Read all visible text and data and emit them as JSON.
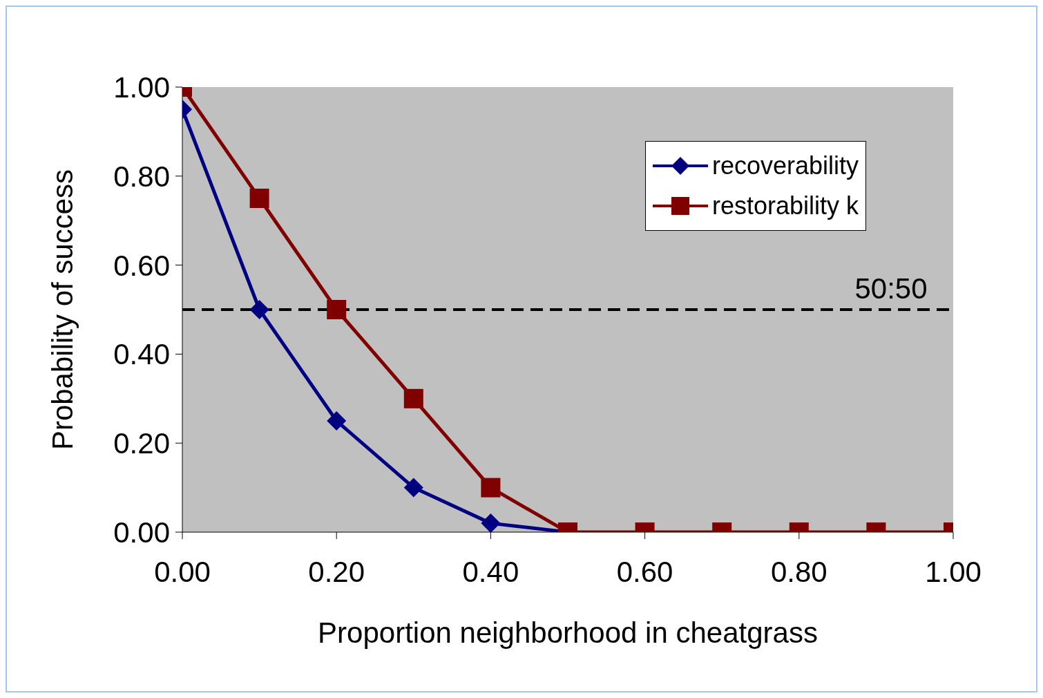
{
  "chart_data": {
    "type": "line",
    "xlabel": "Proportion neighborhood in cheatgrass",
    "ylabel": "Probability of success",
    "x": [
      0,
      0.1,
      0.2,
      0.3,
      0.4,
      0.5,
      0.6,
      0.7,
      0.8,
      0.9,
      1.0
    ],
    "series": [
      {
        "name": "recoverability",
        "color": "#000080",
        "marker": "diamond",
        "values": [
          0.95,
          0.5,
          0.25,
          0.1,
          0.02,
          0,
          null,
          null,
          null,
          null,
          null
        ]
      },
      {
        "name": "restorability k",
        "color": "#800000",
        "marker": "square",
        "values": [
          1.0,
          0.75,
          0.5,
          0.3,
          0.1,
          0,
          0,
          0,
          0,
          0,
          0
        ]
      }
    ],
    "xlim": [
      0,
      1
    ],
    "ylim": [
      0,
      1
    ],
    "xticks": [
      {
        "value": 0,
        "label": "0.00"
      },
      {
        "value": 0.2,
        "label": "0.20"
      },
      {
        "value": 0.4,
        "label": "0.40"
      },
      {
        "value": 0.6,
        "label": "0.60"
      },
      {
        "value": 0.8,
        "label": "0.80"
      },
      {
        "value": 1,
        "label": "1.00"
      }
    ],
    "yticks": [
      {
        "value": 0,
        "label": "0.00"
      },
      {
        "value": 0.2,
        "label": "0.20"
      },
      {
        "value": 0.4,
        "label": "0.40"
      },
      {
        "value": 0.6,
        "label": "0.60"
      },
      {
        "value": 0.8,
        "label": "0.80"
      },
      {
        "value": 1,
        "label": "1.00"
      }
    ],
    "ref_lines": [
      {
        "axis": "y",
        "value": 0.5,
        "label": "50:50",
        "color": "#000000",
        "line_style": "dashed"
      }
    ],
    "grid": false,
    "legend": "top right",
    "line_style": "solid"
  }
}
